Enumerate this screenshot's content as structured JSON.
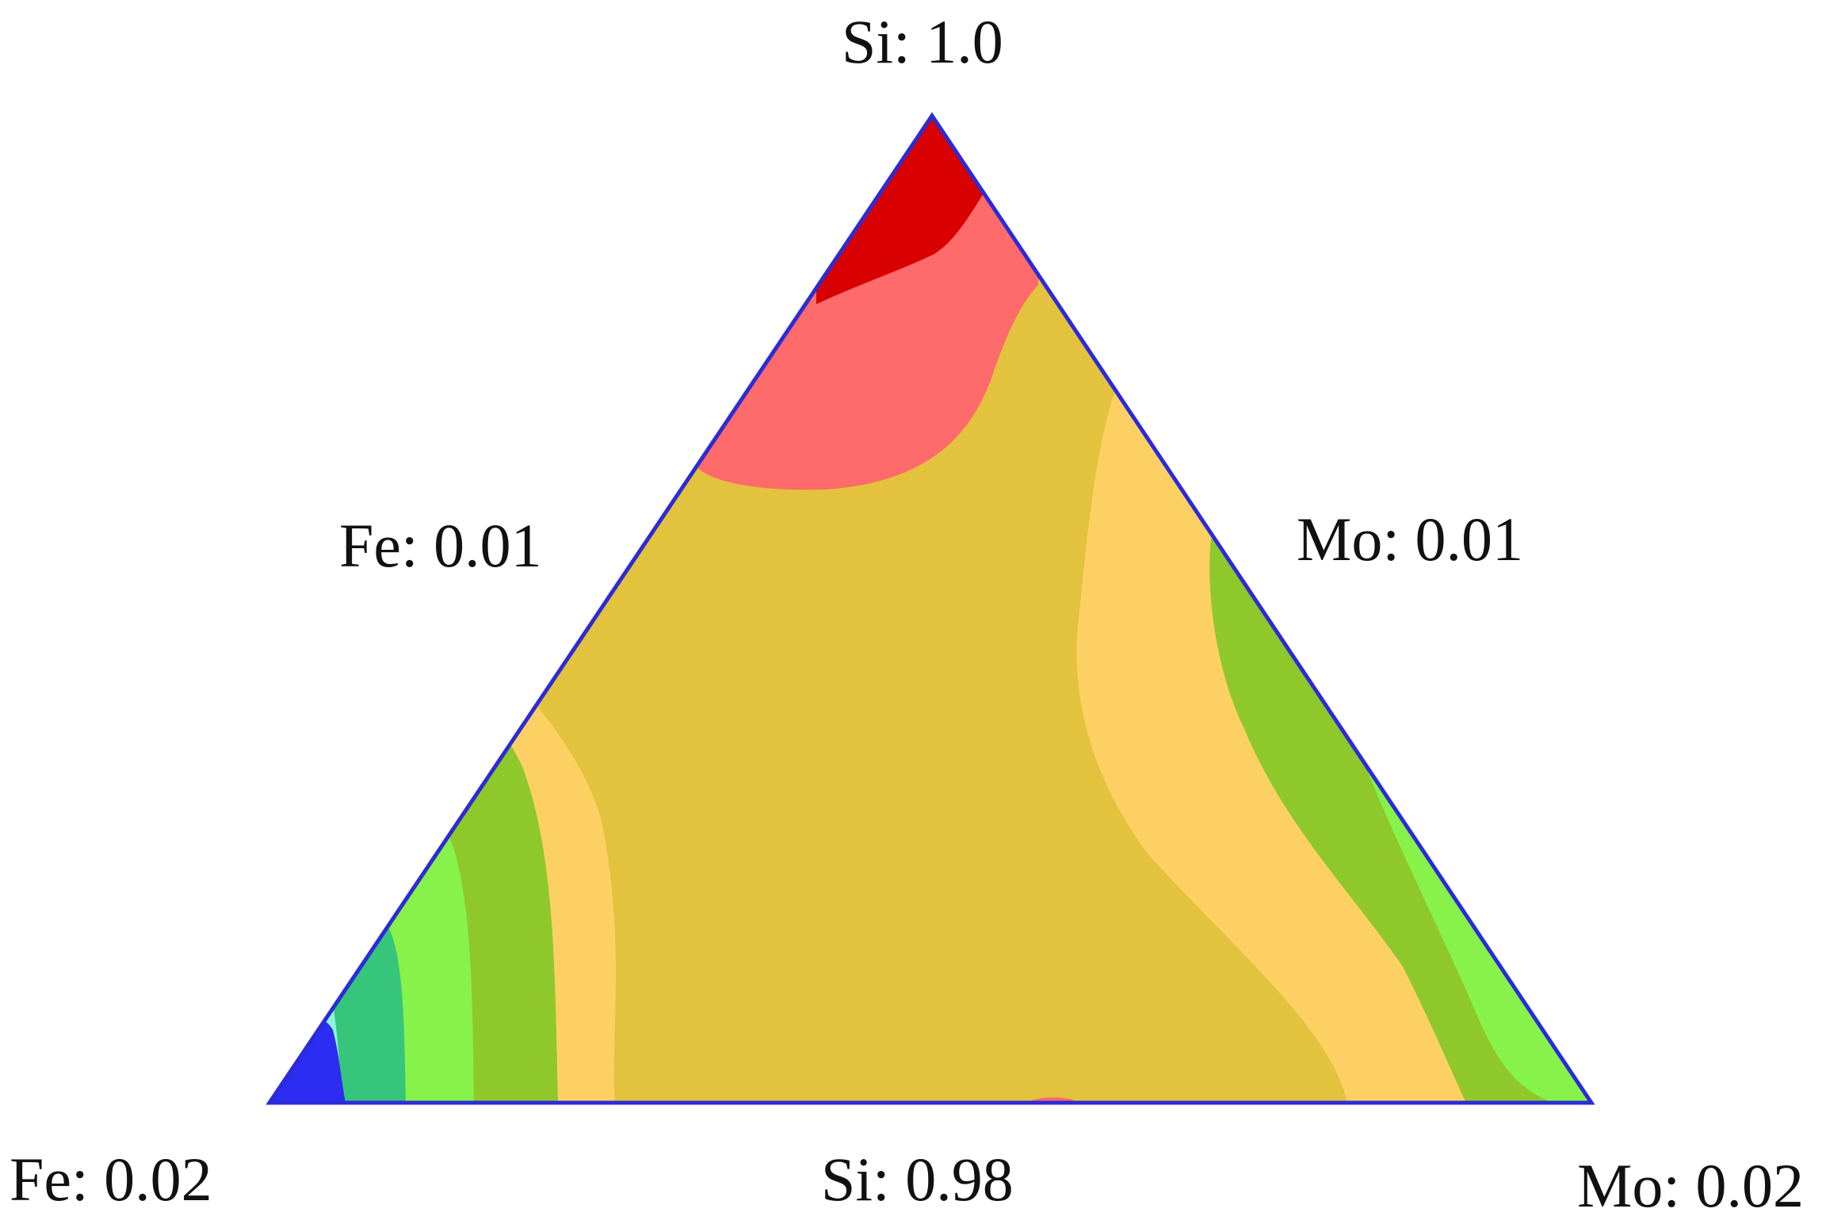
{
  "diagram": {
    "type": "ternary-contour",
    "labels": {
      "top": "Si: 1.0",
      "left_mid": "Fe: 0.01",
      "right_mid": "Mo: 0.01",
      "bottom_left": "Fe: 0.02",
      "bottom_mid": "Si: 0.98",
      "bottom_right": "Mo: 0.02"
    },
    "colors": {
      "outline": "#2b2bd8",
      "dark_red": "#d80000",
      "salmon": "#ff6a6a",
      "mustard": "#e3c23d",
      "light_orange": "#fdd063",
      "olive_green": "#8fc82a",
      "lime": "#86f24a",
      "teal_green": "#36c57a",
      "aqua": "#8cf6d8",
      "blue": "#2c2cf2"
    }
  }
}
